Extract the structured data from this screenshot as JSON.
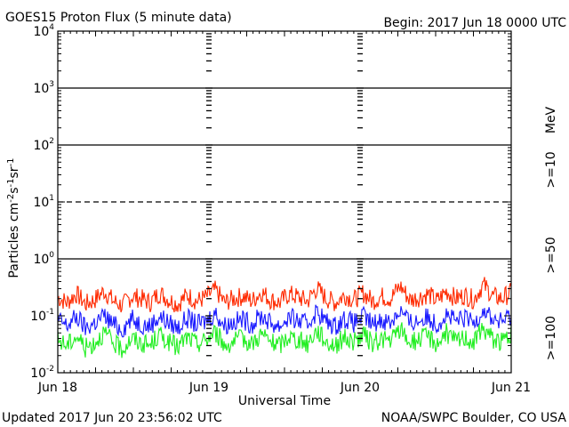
{
  "header": {
    "title": "GOES15 Proton Flux (5 minute data)",
    "begin": "Begin: 2017 Jun 18 0000 UTC"
  },
  "footer": {
    "updated": "Updated 2017 Jun 20 23:56:02 UTC",
    "credit": "NOAA/SWPC Boulder, CO USA"
  },
  "colors": {
    "ge10": "#ff2a00",
    "ge50": "#1a1aff",
    "ge100": "#22ee22",
    "axis": "#000000",
    "background": "#ffffff"
  },
  "chart_data": {
    "type": "line",
    "title": "GOES15 Proton Flux (5 minute data)",
    "xlabel": "Universal Time",
    "ylabel": "Particles cm-2s-1sr-1",
    "y_scale": "log",
    "ylim": [
      0.01,
      10000
    ],
    "xlim": [
      "2017-06-18",
      "2017-06-21"
    ],
    "x_tick_labels": [
      "Jun 18",
      "Jun 19",
      "Jun 20",
      "Jun 21"
    ],
    "y_ticks": [
      {
        "base": "10",
        "exp": "-2"
      },
      {
        "base": "10",
        "exp": "-1"
      },
      {
        "base": "10",
        "exp": "0"
      },
      {
        "base": "10",
        "exp": "1"
      },
      {
        "base": "10",
        "exp": "2"
      },
      {
        "base": "10",
        "exp": "3"
      },
      {
        "base": "10",
        "exp": "4"
      }
    ],
    "unit_label": "MeV",
    "horizontal_reference_lines": [
      {
        "value": 1,
        "style": "solid"
      },
      {
        "value": 10,
        "style": "dashed"
      },
      {
        "value": 100,
        "style": "solid"
      },
      {
        "value": 1000,
        "style": "solid"
      }
    ],
    "series": [
      {
        "name": ">=10",
        "color": "#ff2a00",
        "values": [
          0.21,
          0.17,
          0.24,
          0.16,
          0.19,
          0.27,
          0.18,
          0.15,
          0.22,
          0.2,
          0.17,
          0.25,
          0.19,
          0.16,
          0.23,
          0.18,
          0.21,
          0.28,
          0.17,
          0.2,
          0.22,
          0.18,
          0.26,
          0.19,
          0.17,
          0.24,
          0.21,
          0.18,
          0.3,
          0.2,
          0.17,
          0.23,
          0.19,
          0.25,
          0.18,
          0.22,
          0.2,
          0.33,
          0.19,
          0.21,
          0.24,
          0.18,
          0.27,
          0.2,
          0.23,
          0.19,
          0.35,
          0.22,
          0.2,
          0.26
        ]
      },
      {
        "name": ">=50",
        "color": "#1a1aff",
        "values": [
          0.085,
          0.065,
          0.095,
          0.06,
          0.075,
          0.1,
          0.07,
          0.058,
          0.088,
          0.072,
          0.066,
          0.098,
          0.074,
          0.062,
          0.09,
          0.07,
          0.08,
          0.11,
          0.067,
          0.078,
          0.086,
          0.07,
          0.1,
          0.074,
          0.066,
          0.094,
          0.08,
          0.07,
          0.12,
          0.078,
          0.066,
          0.09,
          0.074,
          0.098,
          0.07,
          0.086,
          0.078,
          0.125,
          0.074,
          0.082,
          0.094,
          0.07,
          0.105,
          0.078,
          0.09,
          0.074,
          0.13,
          0.086,
          0.078,
          0.1
        ]
      },
      {
        "name": ">=100",
        "color": "#22ee22",
        "values": [
          0.038,
          0.03,
          0.044,
          0.027,
          0.034,
          0.05,
          0.032,
          0.026,
          0.04,
          0.033,
          0.03,
          0.046,
          0.034,
          0.028,
          0.042,
          0.032,
          0.037,
          0.052,
          0.03,
          0.035,
          0.04,
          0.032,
          0.048,
          0.034,
          0.03,
          0.044,
          0.037,
          0.032,
          0.055,
          0.035,
          0.03,
          0.042,
          0.034,
          0.046,
          0.032,
          0.04,
          0.035,
          0.058,
          0.034,
          0.038,
          0.044,
          0.032,
          0.05,
          0.035,
          0.042,
          0.034,
          0.06,
          0.04,
          0.035,
          0.048
        ]
      }
    ]
  }
}
